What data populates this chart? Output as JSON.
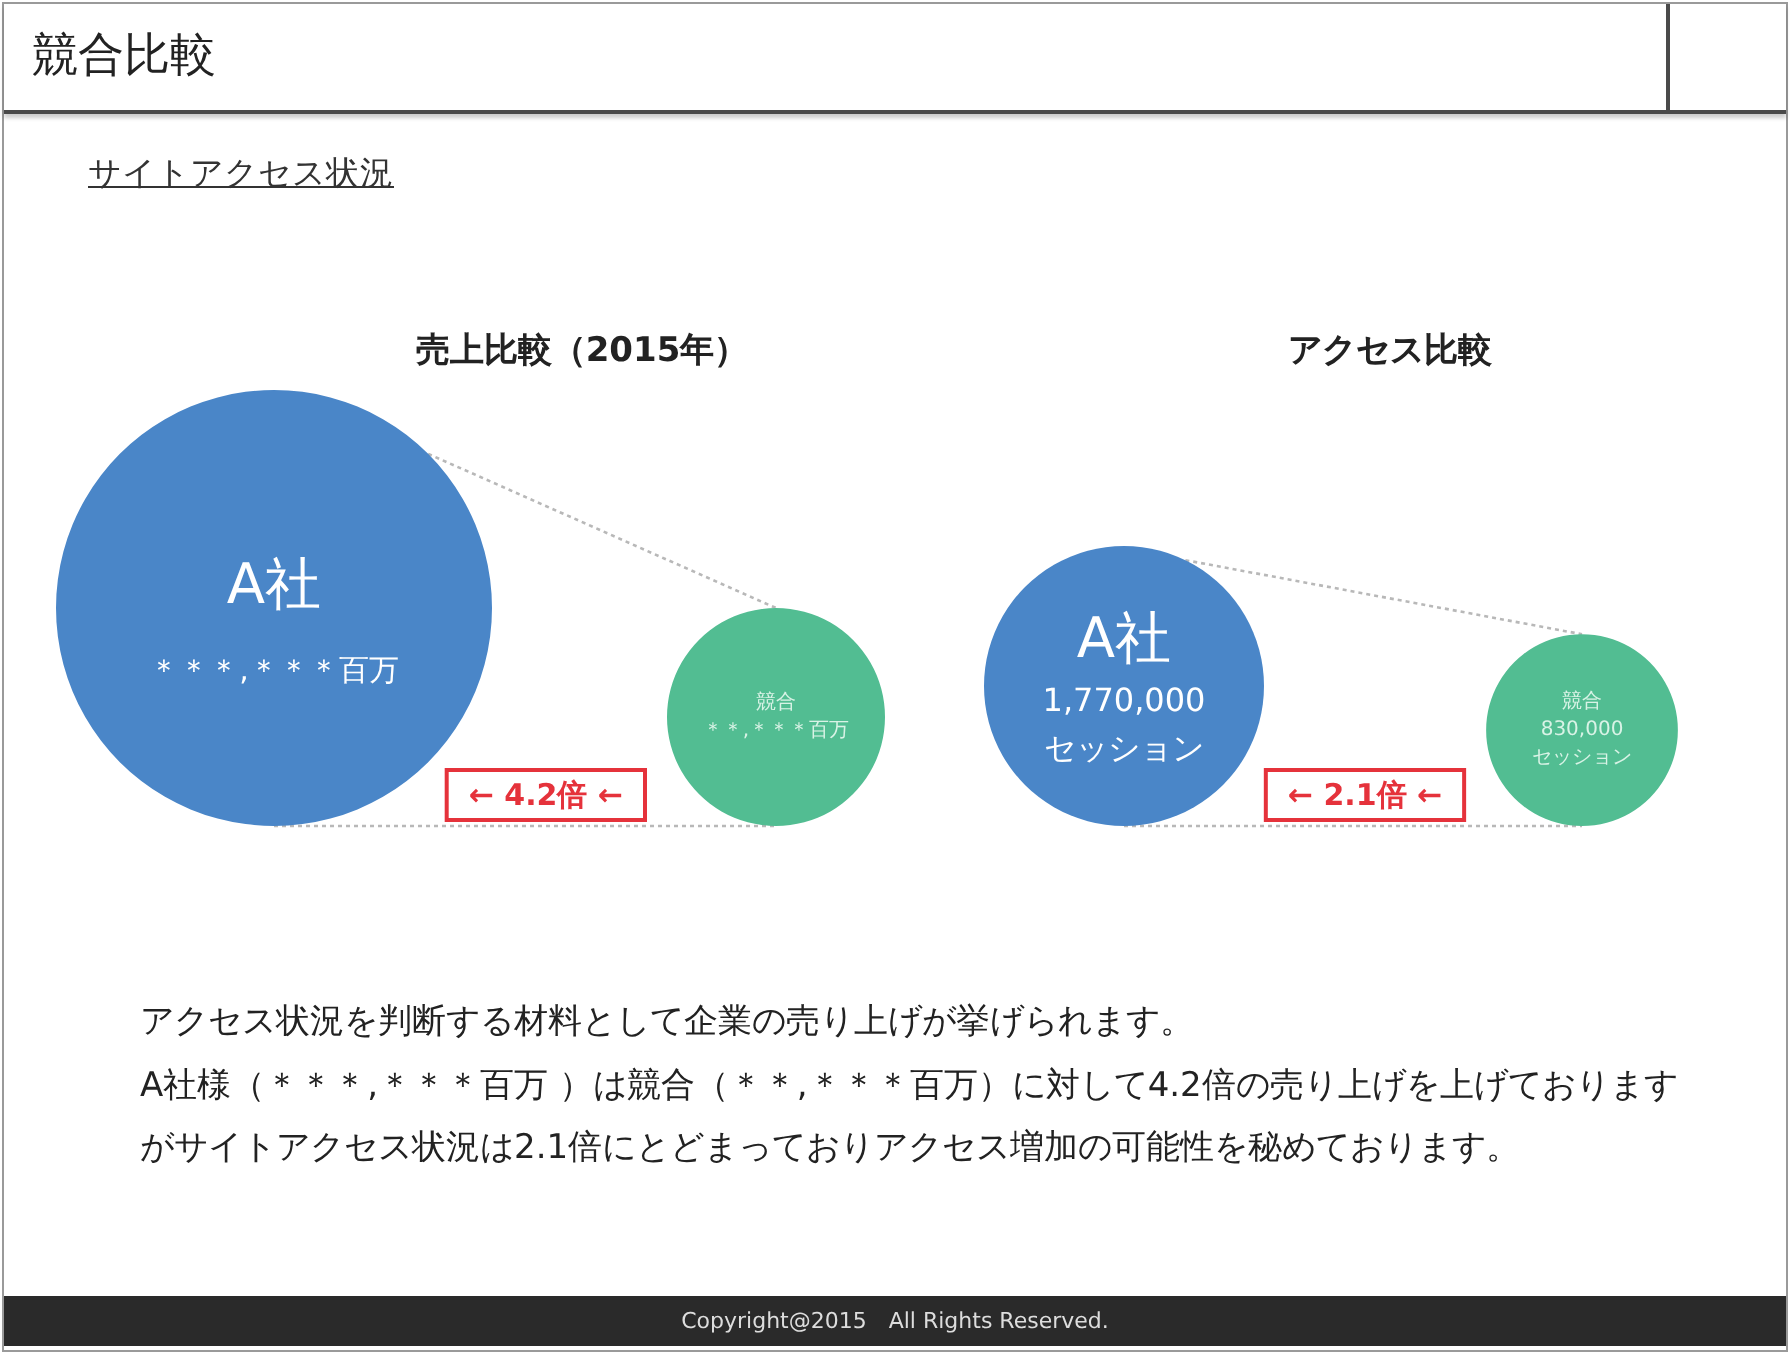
{
  "chart_data": [
    {
      "type": "other",
      "title": "競合比較",
      "subtitle": "サイトアクセス状況"
    },
    {
      "type": "other",
      "title": "売上比較（2015年）",
      "categories": [
        "A社",
        "競合"
      ],
      "colors": [
        "#4a86c8",
        "#52bd92"
      ],
      "value_labels": [
        "＊＊＊,＊＊＊百万",
        "＊＊,＊＊＊百万"
      ],
      "annotations": [
        "← 4.2倍 ←"
      ]
    },
    {
      "type": "other",
      "title": "アクセス比較",
      "categories": [
        "A社",
        "競合"
      ],
      "values": [
        1770000,
        830000
      ],
      "colors": [
        "#4a86c8",
        "#52bd92"
      ],
      "value_labels": [
        "1,770,000\nセッション",
        "830,000\nセッション"
      ],
      "annotations": [
        "← 2.1倍 ←"
      ]
    },
    {
      "type": "other",
      "annotations": [
        "アクセス状況を判断する材料として企業の売り上げが挙げられます。",
        "A社様（＊＊＊,＊＊＊百万 ）は競合（＊＊,＊＊＊百万）に対して4.2倍の売り上げを上げております",
        "がサイトアクセス状況は2.1倍にとどまっておりアクセス増加の可能性を秘めております。"
      ]
    },
    {
      "type": "other",
      "annotations": [
        "Copyright@2015　All Rights Reserved."
      ]
    }
  ]
}
